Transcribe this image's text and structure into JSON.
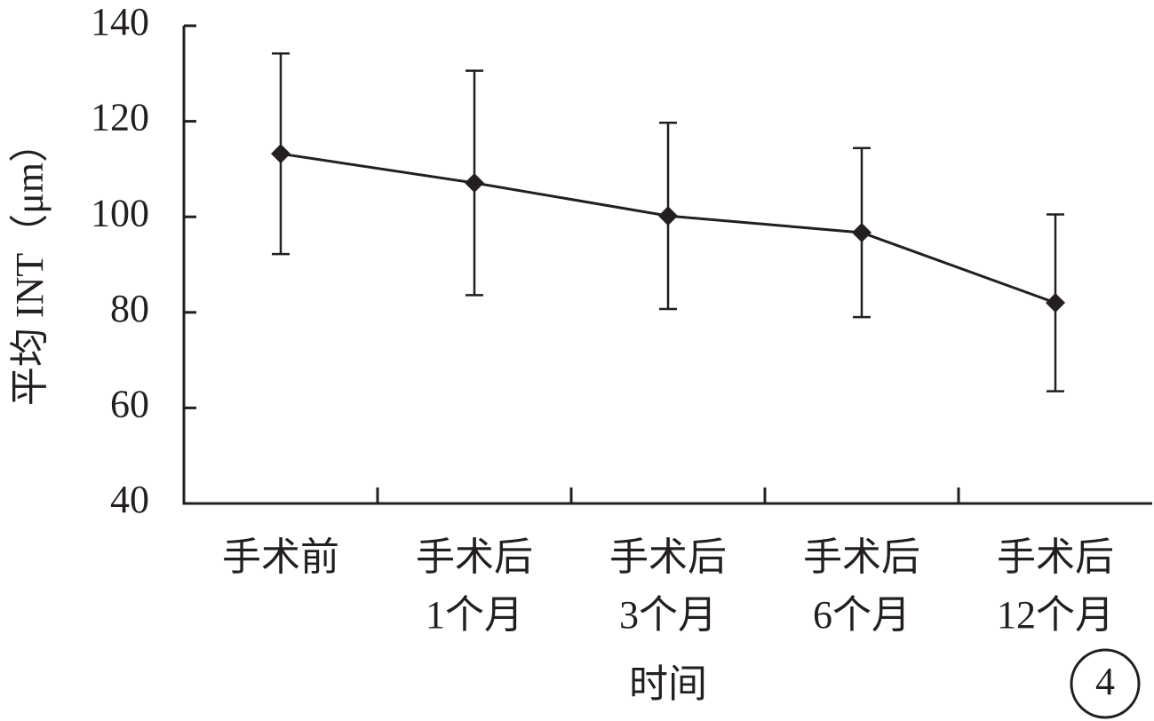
{
  "chart_data": {
    "type": "line",
    "y_label": "平均 INT（μm）",
    "x_label": "时间",
    "annotation": "4",
    "categories": [
      "手术前",
      "手术后\n1个月",
      "手术后\n3个月",
      "手术后\n6个月",
      "手术后\n12个月"
    ],
    "series": [
      {
        "color": "#231f20",
        "values": [
          113.2,
          107.1,
          100.2,
          96.7,
          82
        ],
        "errors": [
          21,
          23.5,
          19.5,
          17.7,
          18.5
        ]
      }
    ],
    "ylim": [
      40,
      140
    ],
    "yticks": [
      40,
      60,
      80,
      100,
      120,
      140
    ]
  }
}
